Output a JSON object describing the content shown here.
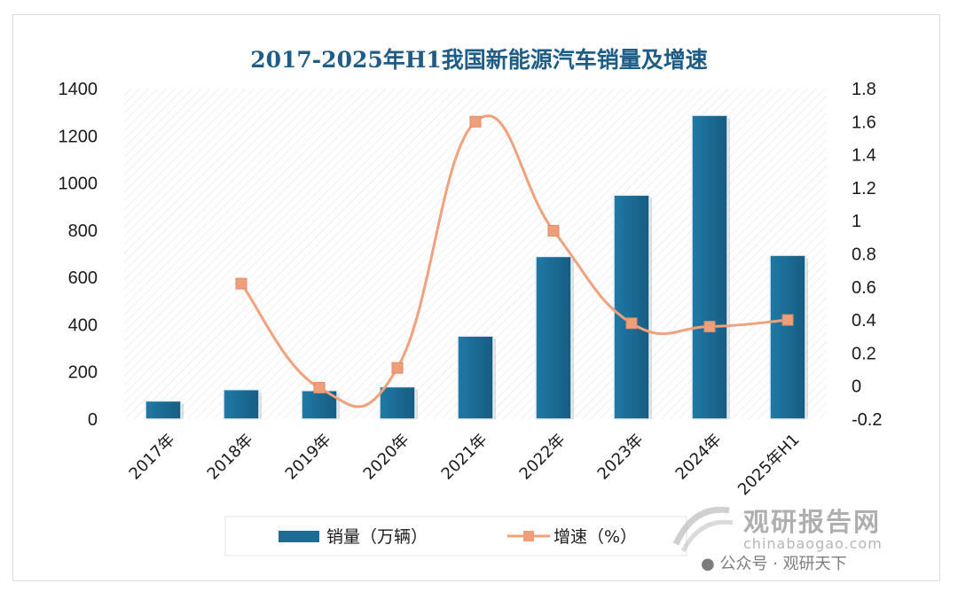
{
  "chart_data": {
    "title": "2017-2025年H1我国新能源汽车销量及增速",
    "type": "bar+line",
    "categories": [
      "2017年",
      "2018年",
      "2019年",
      "2020年",
      "2021年",
      "2022年",
      "2023年",
      "2024年",
      "2025年H1"
    ],
    "series": [
      {
        "name": "销量（万辆）",
        "type": "bar",
        "axis": "left",
        "values": [
          77,
          125,
          121,
          137,
          352,
          689,
          949,
          1287,
          694
        ],
        "color": "#1b6d96"
      },
      {
        "name": "增速（%）",
        "type": "line",
        "axis": "right",
        "values": [
          null,
          0.62,
          -0.01,
          0.11,
          1.6,
          0.94,
          0.38,
          0.36,
          0.4
        ],
        "color": "#f0a27c"
      }
    ],
    "y_left": {
      "ylim": [
        0,
        1400
      ],
      "ticks": [
        0,
        200,
        400,
        600,
        800,
        1000,
        1200,
        1400
      ]
    },
    "y_right": {
      "ylim": [
        -0.2,
        1.8
      ],
      "ticks": [
        "-0.2",
        "0",
        "0.2",
        "0.4",
        "0.6",
        "0.8",
        "1",
        "1.2",
        "1.4",
        "1.6",
        "1.8"
      ]
    },
    "legend_position": "bottom",
    "grid": false
  },
  "watermark": {
    "brand": "观研报告网",
    "site": "chinabaogao.com",
    "wechat": "公众号 · 观研天下"
  }
}
